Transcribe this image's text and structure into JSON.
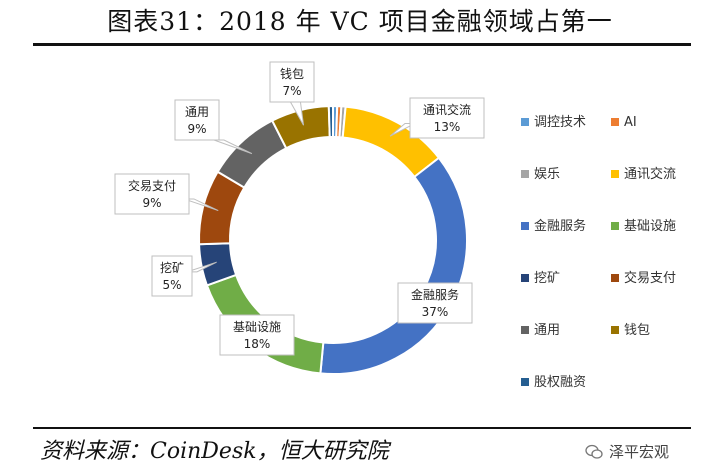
{
  "header": {
    "title": "图表31：2018 年 VC 项目金融领域占第一"
  },
  "footer": {
    "source": "资料来源：CoinDesk，恒大研究院",
    "watermark": "泽平宏观"
  },
  "chart_data": {
    "type": "pie",
    "variant": "donut",
    "title": "",
    "legend_position": "right",
    "slices": [
      {
        "name": "调控技术",
        "value": 0.5,
        "color": "#5B9BD5"
      },
      {
        "name": "AI",
        "value": 0.5,
        "color": "#ED7D31"
      },
      {
        "name": "娱乐",
        "value": 0.5,
        "color": "#A5A5A5"
      },
      {
        "name": "通讯交流",
        "value": 13,
        "label": "13%",
        "color": "#FFC000"
      },
      {
        "name": "金融服务",
        "value": 37,
        "label": "37%",
        "color": "#4472C4"
      },
      {
        "name": "基础设施",
        "value": 18,
        "label": "18%",
        "color": "#70AD47"
      },
      {
        "name": "挖矿",
        "value": 5,
        "label": "5%",
        "color": "#264478"
      },
      {
        "name": "交易支付",
        "value": 9,
        "label": "9%",
        "color": "#9E480E"
      },
      {
        "name": "通用",
        "value": 9,
        "label": "9%",
        "color": "#636363"
      },
      {
        "name": "钱包",
        "value": 7,
        "label": "7%",
        "color": "#997300"
      },
      {
        "name": "股权融资",
        "value": 0.5,
        "color": "#255E91"
      }
    ]
  }
}
